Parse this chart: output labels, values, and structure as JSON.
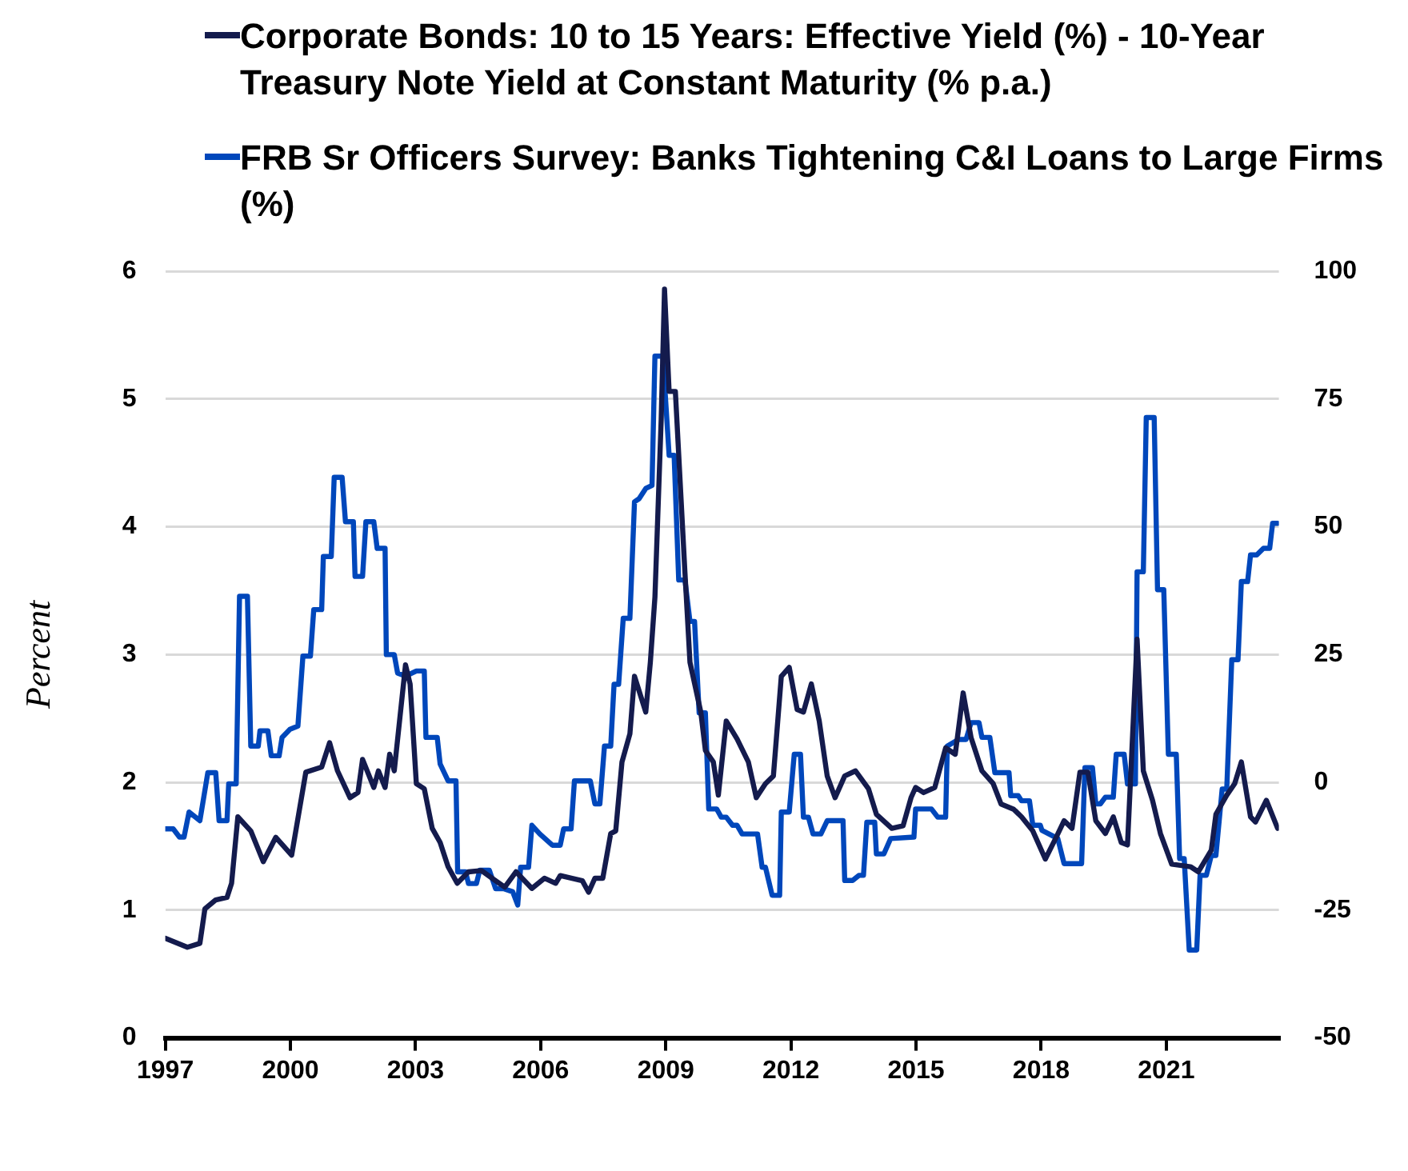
{
  "chart_data": {
    "type": "line",
    "ylabel": "Percent",
    "legend": "top",
    "grid": "y",
    "marker": "none",
    "line_style": "solid",
    "xlim": [
      1997,
      2023.7
    ],
    "xticks": [
      1997,
      2000,
      2003,
      2006,
      2009,
      2012,
      2015,
      2018,
      2021
    ],
    "ylim": [
      0,
      6
    ],
    "yticks": [
      0,
      1,
      2,
      3,
      4,
      5,
      6
    ],
    "y2lim": [
      -50,
      100
    ],
    "y2ticks": [
      -50,
      -25,
      0,
      25,
      50,
      75,
      100
    ],
    "series": [
      {
        "name": "Corporate Bonds: 10 to 15 Years: Effective Yield (%) - 10-Year Treasury Note Yield at Constant Maturity (% p.a.)",
        "color": "#141b4d",
        "axis": "y",
        "x": [
          1997.0,
          1997.53,
          1997.83,
          1997.95,
          1998.21,
          1998.48,
          1998.59,
          1998.74,
          1999.05,
          1999.35,
          1999.65,
          2000.03,
          2000.37,
          2000.75,
          2000.94,
          2001.13,
          2001.43,
          2001.62,
          2001.73,
          2002.0,
          2002.11,
          2002.27,
          2002.38,
          2002.49,
          2002.76,
          2002.87,
          2003.02,
          2003.21,
          2003.4,
          2003.59,
          2003.78,
          2004.0,
          2004.27,
          2004.58,
          2004.92,
          2005.14,
          2005.41,
          2005.79,
          2006.09,
          2006.36,
          2006.47,
          2007.0,
          2007.15,
          2007.3,
          2007.49,
          2007.68,
          2007.8,
          2007.95,
          2008.14,
          2008.25,
          2008.52,
          2008.63,
          2008.74,
          2008.89,
          2008.97,
          2009.08,
          2009.23,
          2009.46,
          2009.58,
          2009.84,
          2009.95,
          2010.14,
          2010.26,
          2010.45,
          2010.71,
          2010.98,
          2011.17,
          2011.39,
          2011.58,
          2011.77,
          2011.96,
          2012.15,
          2012.3,
          2012.49,
          2012.68,
          2012.87,
          2013.06,
          2013.29,
          2013.55,
          2013.86,
          2014.05,
          2014.42,
          2014.69,
          2014.88,
          2014.99,
          2015.18,
          2015.45,
          2015.71,
          2015.94,
          2016.13,
          2016.32,
          2016.58,
          2016.85,
          2017.04,
          2017.34,
          2017.53,
          2017.8,
          2018.1,
          2018.36,
          2018.55,
          2018.74,
          2018.93,
          2019.12,
          2019.31,
          2019.54,
          2019.73,
          2019.92,
          2020.07,
          2020.3,
          2020.45,
          2020.67,
          2020.86,
          2021.13,
          2021.58,
          2021.77,
          2022.08,
          2022.19,
          2022.45,
          2022.64,
          2022.8,
          2023.02,
          2023.14,
          2023.4,
          2023.67
        ],
        "values": [
          0.78,
          0.71,
          0.74,
          1.01,
          1.08,
          1.1,
          1.21,
          1.73,
          1.62,
          1.38,
          1.57,
          1.43,
          2.08,
          2.12,
          2.31,
          2.09,
          1.88,
          1.92,
          2.18,
          1.96,
          2.09,
          1.96,
          2.22,
          2.09,
          2.92,
          2.77,
          1.99,
          1.95,
          1.64,
          1.53,
          1.34,
          1.21,
          1.3,
          1.31,
          1.23,
          1.18,
          1.3,
          1.17,
          1.25,
          1.21,
          1.27,
          1.23,
          1.14,
          1.25,
          1.25,
          1.6,
          1.62,
          2.16,
          2.38,
          2.83,
          2.55,
          2.94,
          3.45,
          4.84,
          5.86,
          5.06,
          5.06,
          3.64,
          2.94,
          2.55,
          2.25,
          2.16,
          1.9,
          2.48,
          2.34,
          2.16,
          1.88,
          1.99,
          2.05,
          2.83,
          2.9,
          2.57,
          2.55,
          2.77,
          2.48,
          2.05,
          1.88,
          2.05,
          2.09,
          1.95,
          1.75,
          1.64,
          1.66,
          1.88,
          1.96,
          1.92,
          1.96,
          2.27,
          2.22,
          2.7,
          2.35,
          2.09,
          1.99,
          1.83,
          1.79,
          1.73,
          1.62,
          1.4,
          1.57,
          1.7,
          1.64,
          2.08,
          2.08,
          1.7,
          1.6,
          1.73,
          1.53,
          1.51,
          3.12,
          2.09,
          1.86,
          1.6,
          1.36,
          1.34,
          1.3,
          1.47,
          1.75,
          1.9,
          1.99,
          2.16,
          1.73,
          1.69,
          1.86,
          1.64
        ]
      },
      {
        "name": "FRB Sr Officers Survey: Banks Tightening C&I Loans to Large Firms (%)",
        "color": "#0047bb",
        "axis": "y2",
        "x": [
          1997.0,
          1997.19,
          1997.34,
          1997.45,
          1997.57,
          1997.83,
          1998.02,
          1998.21,
          1998.29,
          1998.48,
          1998.52,
          1998.7,
          1998.78,
          1998.97,
          1999.05,
          1999.23,
          1999.27,
          1999.46,
          1999.54,
          1999.73,
          1999.8,
          1999.99,
          2000.18,
          2000.3,
          2000.48,
          2000.56,
          2000.75,
          2000.79,
          2000.98,
          2001.05,
          2001.24,
          2001.32,
          2001.51,
          2001.55,
          2001.73,
          2001.81,
          2002.0,
          2002.08,
          2002.27,
          2002.3,
          2002.49,
          2002.57,
          2002.76,
          2003.02,
          2003.21,
          2003.25,
          2003.52,
          2003.59,
          2003.78,
          2003.97,
          2004.01,
          2004.2,
          2004.27,
          2004.46,
          2004.54,
          2004.77,
          2004.92,
          2005.11,
          2005.33,
          2005.45,
          2005.52,
          2005.71,
          2005.79,
          2005.98,
          2006.28,
          2006.47,
          2006.55,
          2006.73,
          2006.81,
          2007.19,
          2007.3,
          2007.42,
          2007.53,
          2007.68,
          2007.76,
          2007.87,
          2007.98,
          2008.14,
          2008.25,
          2008.36,
          2008.52,
          2008.67,
          2008.74,
          2008.93,
          2009.08,
          2009.2,
          2009.31,
          2009.46,
          2009.58,
          2009.69,
          2009.8,
          2009.95,
          2010.03,
          2010.22,
          2010.33,
          2010.45,
          2010.6,
          2010.71,
          2010.83,
          2011.2,
          2011.31,
          2011.39,
          2011.55,
          2011.73,
          2011.77,
          2011.96,
          2012.08,
          2012.23,
          2012.3,
          2012.42,
          2012.53,
          2012.72,
          2012.87,
          2013.25,
          2013.29,
          2013.48,
          2013.63,
          2013.74,
          2013.82,
          2014.01,
          2014.05,
          2014.23,
          2014.39,
          2014.95,
          2014.99,
          2015.37,
          2015.52,
          2015.71,
          2015.75,
          2016.02,
          2016.2,
          2016.32,
          2016.51,
          2016.58,
          2016.77,
          2016.89,
          2017.23,
          2017.27,
          2017.45,
          2017.53,
          2017.72,
          2017.8,
          2017.98,
          2018.02,
          2018.4,
          2018.55,
          2018.97,
          2019.05,
          2019.23,
          2019.31,
          2019.42,
          2019.54,
          2019.73,
          2019.8,
          2019.99,
          2020.07,
          2020.26,
          2020.3,
          2020.45,
          2020.52,
          2020.71,
          2020.79,
          2020.94,
          2021.05,
          2021.24,
          2021.32,
          2021.43,
          2021.55,
          2021.73,
          2021.81,
          2021.96,
          2022.08,
          2022.19,
          2022.34,
          2022.45,
          2022.57,
          2022.72,
          2022.8,
          2022.95,
          2023.02,
          2023.17,
          2023.33,
          2023.48,
          2023.55,
          2023.67
        ],
        "values": [
          -9.1,
          -9.1,
          -10.7,
          -10.7,
          -5.8,
          -7.5,
          1.9,
          1.9,
          -7.5,
          -7.5,
          -0.3,
          -0.3,
          36.4,
          36.4,
          7.1,
          7.1,
          10.1,
          10.1,
          5.2,
          5.2,
          8.8,
          10.4,
          11.0,
          24.7,
          24.7,
          33.8,
          33.8,
          44.2,
          44.2,
          59.7,
          59.7,
          51.0,
          51.0,
          40.3,
          40.3,
          51.0,
          51.0,
          45.8,
          45.8,
          25.0,
          25.0,
          21.4,
          20.8,
          21.8,
          21.8,
          8.8,
          8.8,
          3.6,
          0.3,
          0.3,
          -17.5,
          -17.5,
          -19.8,
          -19.8,
          -17.2,
          -17.2,
          -20.8,
          -20.8,
          -21.4,
          -24.0,
          -16.6,
          -16.6,
          -8.4,
          -10.1,
          -12.3,
          -12.3,
          -9.1,
          -9.1,
          0.3,
          0.3,
          -4.2,
          -4.2,
          7.1,
          7.1,
          19.2,
          19.2,
          32.1,
          32.1,
          54.9,
          55.5,
          57.5,
          58.1,
          83.4,
          83.4,
          64.0,
          64.0,
          39.6,
          39.6,
          31.5,
          31.5,
          13.6,
          13.6,
          -5.2,
          -5.2,
          -6.8,
          -6.8,
          -8.4,
          -8.4,
          -10.1,
          -10.1,
          -16.6,
          -16.6,
          -22.1,
          -22.1,
          -5.8,
          -5.8,
          5.5,
          5.5,
          -6.8,
          -6.8,
          -10.1,
          -10.1,
          -7.5,
          -7.5,
          -19.2,
          -19.2,
          -18.2,
          -18.2,
          -7.8,
          -7.8,
          -14.0,
          -14.0,
          -11.0,
          -10.7,
          -5.2,
          -5.2,
          -6.8,
          -6.8,
          7.1,
          8.4,
          8.4,
          11.7,
          11.7,
          8.8,
          8.8,
          1.9,
          1.9,
          -2.6,
          -2.6,
          -3.6,
          -3.6,
          -8.4,
          -8.4,
          -9.4,
          -11.0,
          -15.9,
          -15.9,
          2.9,
          2.9,
          -4.2,
          -4.2,
          -2.9,
          -2.9,
          5.5,
          5.5,
          -0.3,
          -0.3,
          41.2,
          41.2,
          71.4,
          71.4,
          37.7,
          37.7,
          5.5,
          5.5,
          -14.9,
          -14.9,
          -32.8,
          -32.8,
          -18.2,
          -18.2,
          -14.3,
          -14.3,
          -1.3,
          -1.3,
          24.0,
          24.0,
          39.3,
          39.3,
          44.5,
          44.5,
          45.8,
          45.8,
          50.7,
          50.7
        ]
      }
    ]
  }
}
